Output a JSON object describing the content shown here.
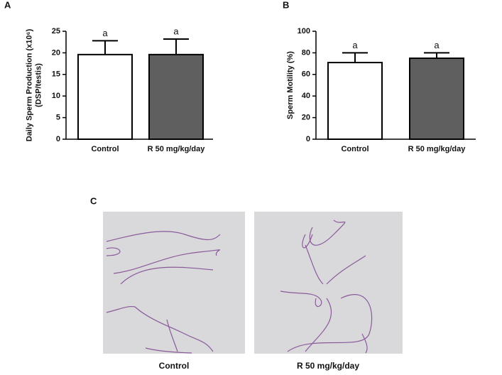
{
  "chart_data": [
    {
      "type": "bar",
      "panel": "A",
      "ylabel": [
        "Daily Sperm Production (x10⁶)",
        "(DSP/testis)"
      ],
      "categories": [
        "Control",
        "R 50 mg/kg/day"
      ],
      "values": [
        19.6,
        19.6
      ],
      "errors": [
        3.2,
        3.6
      ],
      "annotations": [
        "a",
        "a"
      ],
      "colors": [
        "#ffffff",
        "#5f5f5f"
      ],
      "ylim": [
        0,
        25
      ],
      "yticks": [
        0,
        5,
        10,
        15,
        20,
        25
      ]
    },
    {
      "type": "bar",
      "panel": "B",
      "ylabel": [
        "Sperm Motility (%)"
      ],
      "categories": [
        "Control",
        "R 50 mg/kg/day"
      ],
      "values": [
        71,
        75
      ],
      "errors": [
        9,
        5
      ],
      "annotations": [
        "a",
        "a"
      ],
      "colors": [
        "#ffffff",
        "#5f5f5f"
      ],
      "ylim": [
        0,
        100
      ],
      "yticks": [
        0,
        20,
        40,
        60,
        80,
        100
      ]
    }
  ],
  "panel_c": {
    "label": "C",
    "captions": [
      "Control",
      "R 50 mg/kg/day"
    ]
  }
}
